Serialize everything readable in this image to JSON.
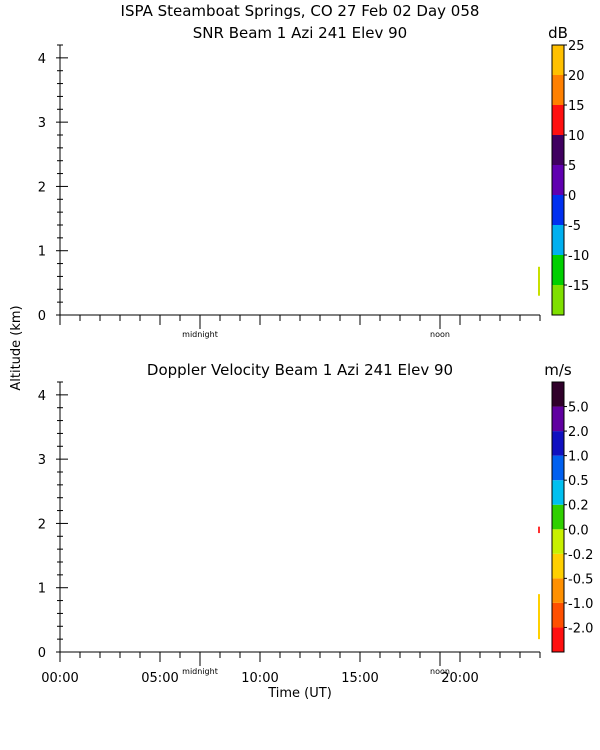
{
  "figure": {
    "title_line1": "ISPA Steamboat Springs, CO  27 Feb 02 Day 058",
    "ylabel": "Altitude (km)",
    "xlabel": "Time (UT)",
    "x_ticks": [
      "00:00",
      "05:00",
      "10:00",
      "15:00",
      "20:00"
    ],
    "x_markers": [
      "midnight",
      "noon"
    ]
  },
  "chart_data": [
    {
      "type": "heatmap",
      "title": "SNR Beam 1 Azi 241 Elev 90",
      "colorbar_unit": "dB",
      "colorbar_labels": [
        "-15",
        "-10",
        "-5",
        "0",
        "5",
        "10",
        "15",
        "20",
        "25"
      ],
      "colorbar_colors": [
        "#7fe000",
        "#00d000",
        "#00b0f0",
        "#0030f0",
        "#6000b0",
        "#400060",
        "#ff1010",
        "#ff8000",
        "#ffc000"
      ],
      "y_ticks": [
        "0",
        "1",
        "2",
        "3",
        "4"
      ],
      "ylim": [
        0,
        4.2
      ],
      "xlim_hours": [
        0,
        24
      ],
      "data_streaks": [
        {
          "t_hours": 23.95,
          "alt_from": 0.3,
          "alt_to": 0.75,
          "color": "#c8e000"
        }
      ]
    },
    {
      "type": "heatmap",
      "title": "Doppler Velocity Beam 1 Azi 241 Elev 90",
      "colorbar_unit": "m/s",
      "colorbar_labels": [
        "-2.0",
        "-1.0",
        "-0.5",
        "-0.2",
        "0.0",
        "0.2",
        "0.5",
        "1.0",
        "2.0",
        "5.0"
      ],
      "colorbar_colors": [
        "#ff1010",
        "#ff5000",
        "#ff9000",
        "#ffd000",
        "#c8f000",
        "#30d000",
        "#00c0f0",
        "#0060f0",
        "#1010c0",
        "#6000a0",
        "#30002a"
      ],
      "y_ticks": [
        "0",
        "1",
        "2",
        "3",
        "4"
      ],
      "ylim": [
        0,
        4.2
      ],
      "xlim_hours": [
        0,
        24
      ],
      "data_streaks": [
        {
          "t_hours": 23.95,
          "alt_from": 1.85,
          "alt_to": 1.95,
          "color": "#ff3030"
        },
        {
          "t_hours": 23.95,
          "alt_from": 0.2,
          "alt_to": 0.9,
          "color": "#ffd000"
        }
      ]
    }
  ]
}
